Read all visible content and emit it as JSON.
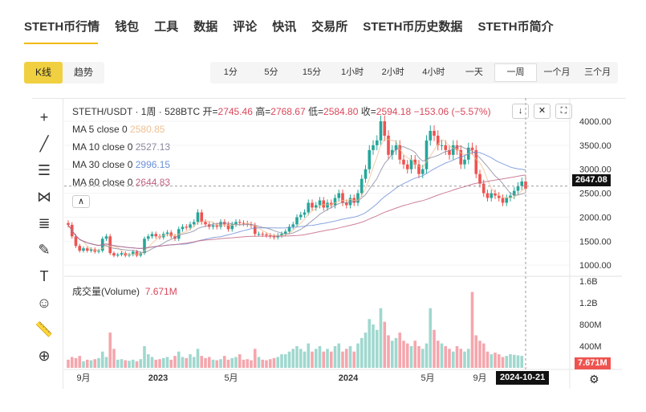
{
  "nav": [
    "STETH币行情",
    "钱包",
    "工具",
    "数据",
    "评论",
    "快讯",
    "交易所",
    "STETH币历史数据",
    "STETH币简介"
  ],
  "modes": [
    "K线",
    "趋势"
  ],
  "intervals": [
    "1分",
    "5分",
    "15分",
    "1小时",
    "2小时",
    "4小时",
    "一天",
    "一周",
    "一个月",
    "三个月"
  ],
  "active_interval": "一周",
  "legend": {
    "symbol": "STETH/USDT · 1周 · 528BTC",
    "open_label": "开=",
    "open": "2745.46",
    "high_label": "高=",
    "high": "2768.67",
    "low_label": "低=",
    "low": "2584.80",
    "close_label": "收=",
    "close": "2594.18",
    "change": "−153.06 (−5.57%)",
    "ma": [
      {
        "label": "MA 5 close 0",
        "value": "2580.85",
        "color": "#f0c090"
      },
      {
        "label": "MA 10 close 0",
        "value": "2527.13",
        "color": "#8a8aa0"
      },
      {
        "label": "MA 30 close 0",
        "value": "2996.15",
        "color": "#6b8fd6"
      },
      {
        "label": "MA 60 close 0",
        "value": "2644.83",
        "color": "#c06080"
      }
    ]
  },
  "volume": {
    "label": "成交量(Volume)",
    "value": "7.671M"
  },
  "price_tag": "2647.08",
  "volume_tag": "7.671M",
  "date_tag": "2024-10-21",
  "colors": {
    "up": "#26a69a",
    "down": "#ef5350",
    "accent": "#f0b90b"
  },
  "chart_data": {
    "type": "candlestick",
    "interval": "1周",
    "price_ticks": [
      4000,
      3500,
      3000,
      2500,
      2000,
      1500,
      1000
    ],
    "price_tick_labels": [
      "4000.00",
      "3500.00",
      "3000.00",
      "2500.00",
      "2000.00",
      "1500.00",
      "1000.00"
    ],
    "volume_tick_labels": [
      "1.6B",
      "1.2B",
      "800M",
      "400M"
    ],
    "volume_ticks": [
      1600,
      1200,
      800,
      400
    ],
    "x_labels": [
      "9月",
      "2023",
      "5月",
      "2024",
      "5月",
      "9月"
    ],
    "closes": [
      1840,
      1600,
      1400,
      1300,
      1350,
      1300,
      1330,
      1280,
      1300,
      1550,
      1600,
      1250,
      1200,
      1220,
      1250,
      1200,
      1220,
      1280,
      1200,
      1250,
      1550,
      1600,
      1650,
      1600,
      1580,
      1650,
      1680,
      1600,
      1550,
      1750,
      1800,
      1780,
      1850,
      1900,
      2100,
      1900,
      1850,
      1800,
      1830,
      1800,
      1900,
      1850,
      1750,
      1850,
      1900,
      1880,
      1870,
      1850,
      1830,
      1650,
      1650,
      1640,
      1620,
      1600,
      1580,
      1620,
      1650,
      1700,
      1800,
      1850,
      2000,
      2050,
      2100,
      2300,
      2200,
      2250,
      2350,
      2200,
      2300,
      2250,
      2400,
      2500,
      2300,
      2250,
      2400,
      2300,
      2500,
      2800,
      3000,
      3400,
      3500,
      3600,
      4000,
      3700,
      3300,
      3400,
      3500,
      3200,
      3100,
      3000,
      3200,
      3100,
      2900,
      3000,
      3600,
      3800,
      3700,
      3500,
      3500,
      3400,
      3300,
      3500,
      3400,
      3100,
      3200,
      3450,
      3400,
      2900,
      2700,
      2500,
      2400,
      2500,
      2450,
      2400,
      2300,
      2400,
      2450,
      2550,
      2650,
      2745,
      2594
    ],
    "volumes_m": [
      150,
      200,
      180,
      220,
      120,
      150,
      140,
      160,
      180,
      300,
      200,
      650,
      350,
      150,
      160,
      140,
      130,
      150,
      120,
      160,
      400,
      250,
      200,
      150,
      160,
      180,
      200,
      150,
      220,
      300,
      200,
      180,
      250,
      200,
      350,
      220,
      180,
      200,
      150,
      140,
      160,
      220,
      150,
      180,
      200,
      250,
      150,
      160,
      140,
      350,
      200,
      150,
      140,
      160,
      180,
      200,
      250,
      250,
      300,
      350,
      400,
      350,
      300,
      450,
      300,
      350,
      400,
      300,
      350,
      300,
      400,
      450,
      300,
      350,
      400,
      300,
      450,
      550,
      650,
      900,
      800,
      700,
      1100,
      850,
      600,
      500,
      550,
      650,
      500,
      450,
      400,
      500,
      400,
      350,
      450,
      1100,
      700,
      500,
      450,
      400,
      350,
      300,
      400,
      350,
      300,
      350,
      1400,
      600,
      500,
      450,
      300,
      250,
      280,
      250,
      200,
      220,
      250,
      240,
      230,
      220,
      8
    ]
  }
}
